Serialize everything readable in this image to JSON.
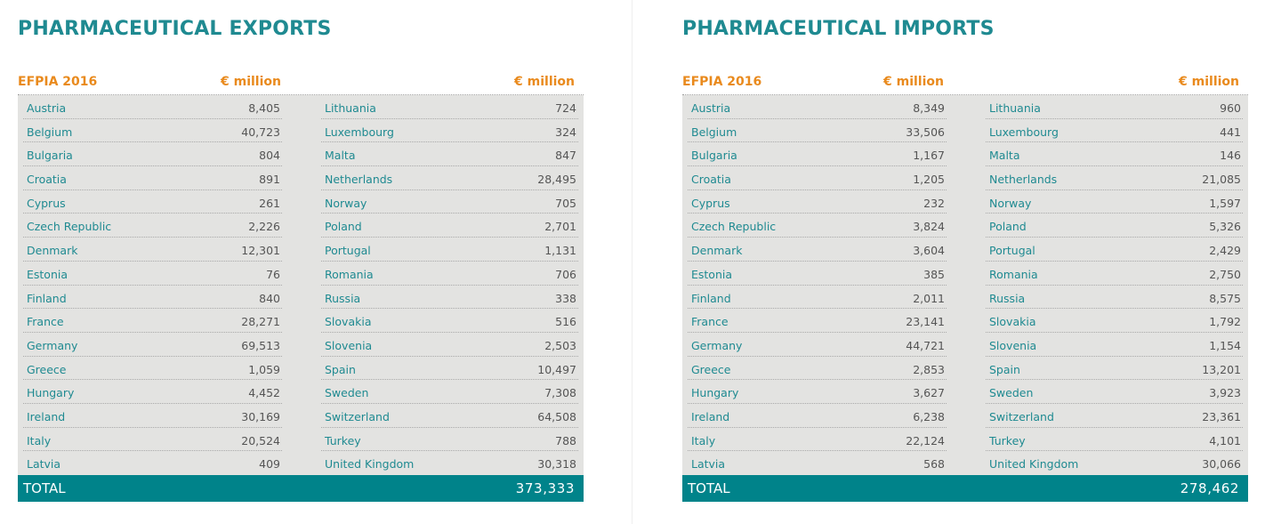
{
  "exports": {
    "title": "PHARMACEUTICAL EXPORTS",
    "header_label": "EFPIA 2016",
    "unit_left": "€ million",
    "unit_right": "€ million",
    "left_rows": [
      {
        "country": "Austria",
        "value": "8,405"
      },
      {
        "country": "Belgium",
        "value": "40,723"
      },
      {
        "country": "Bulgaria",
        "value": "804"
      },
      {
        "country": "Croatia",
        "value": "891"
      },
      {
        "country": "Cyprus",
        "value": "261"
      },
      {
        "country": "Czech Republic",
        "value": "2,226"
      },
      {
        "country": "Denmark",
        "value": "12,301"
      },
      {
        "country": "Estonia",
        "value": "76"
      },
      {
        "country": "Finland",
        "value": "840"
      },
      {
        "country": "France",
        "value": "28,271"
      },
      {
        "country": "Germany",
        "value": "69,513"
      },
      {
        "country": "Greece",
        "value": "1,059"
      },
      {
        "country": "Hungary",
        "value": "4,452"
      },
      {
        "country": "Ireland",
        "value": "30,169"
      },
      {
        "country": "Italy",
        "value": "20,524"
      },
      {
        "country": "Latvia",
        "value": "409"
      }
    ],
    "right_rows": [
      {
        "country": "Lithuania",
        "value": "724"
      },
      {
        "country": "Luxembourg",
        "value": "324"
      },
      {
        "country": "Malta",
        "value": "847"
      },
      {
        "country": "Netherlands",
        "value": "28,495"
      },
      {
        "country": "Norway",
        "value": "705"
      },
      {
        "country": "Poland",
        "value": "2,701"
      },
      {
        "country": "Portugal",
        "value": "1,131"
      },
      {
        "country": "Romania",
        "value": "706"
      },
      {
        "country": "Russia",
        "value": "338"
      },
      {
        "country": "Slovakia",
        "value": "516"
      },
      {
        "country": "Slovenia",
        "value": "2,503"
      },
      {
        "country": "Spain",
        "value": "10,497"
      },
      {
        "country": "Sweden",
        "value": "7,308"
      },
      {
        "country": "Switzerland",
        "value": "64,508"
      },
      {
        "country": "Turkey",
        "value": "788"
      },
      {
        "country": "United Kingdom",
        "value": "30,318"
      }
    ],
    "total_label": "TOTAL",
    "total_value": "373,333"
  },
  "imports": {
    "title": "PHARMACEUTICAL IMPORTS",
    "header_label": "EFPIA 2016",
    "unit_left": "€ million",
    "unit_right": "€ million",
    "left_rows": [
      {
        "country": "Austria",
        "value": "8,349"
      },
      {
        "country": "Belgium",
        "value": "33,506"
      },
      {
        "country": "Bulgaria",
        "value": "1,167"
      },
      {
        "country": "Croatia",
        "value": "1,205"
      },
      {
        "country": "Cyprus",
        "value": "232"
      },
      {
        "country": "Czech Republic",
        "value": "3,824"
      },
      {
        "country": "Denmark",
        "value": "3,604"
      },
      {
        "country": "Estonia",
        "value": "385"
      },
      {
        "country": "Finland",
        "value": "2,011"
      },
      {
        "country": "France",
        "value": "23,141"
      },
      {
        "country": "Germany",
        "value": "44,721"
      },
      {
        "country": "Greece",
        "value": "2,853"
      },
      {
        "country": "Hungary",
        "value": "3,627"
      },
      {
        "country": "Ireland",
        "value": "6,238"
      },
      {
        "country": "Italy",
        "value": "22,124"
      },
      {
        "country": "Latvia",
        "value": "568"
      }
    ],
    "right_rows": [
      {
        "country": "Lithuania",
        "value": "960"
      },
      {
        "country": "Luxembourg",
        "value": "441"
      },
      {
        "country": "Malta",
        "value": "146"
      },
      {
        "country": "Netherlands",
        "value": "21,085"
      },
      {
        "country": "Norway",
        "value": "1,597"
      },
      {
        "country": "Poland",
        "value": "5,326"
      },
      {
        "country": "Portugal",
        "value": "2,429"
      },
      {
        "country": "Romania",
        "value": "2,750"
      },
      {
        "country": "Russia",
        "value": "8,575"
      },
      {
        "country": "Slovakia",
        "value": "1,792"
      },
      {
        "country": "Slovenia",
        "value": "1,154"
      },
      {
        "country": "Spain",
        "value": "13,201"
      },
      {
        "country": "Sweden",
        "value": "3,923"
      },
      {
        "country": "Switzerland",
        "value": "23,361"
      },
      {
        "country": "Turkey",
        "value": "4,101"
      },
      {
        "country": "United Kingdom",
        "value": "30,066"
      }
    ],
    "total_label": "TOTAL",
    "total_value": "278,462"
  },
  "colors": {
    "title": "#1f8a91",
    "header": "#e98a1d",
    "table_bg": "#e3e3e1",
    "total_bg": "#00838a"
  }
}
